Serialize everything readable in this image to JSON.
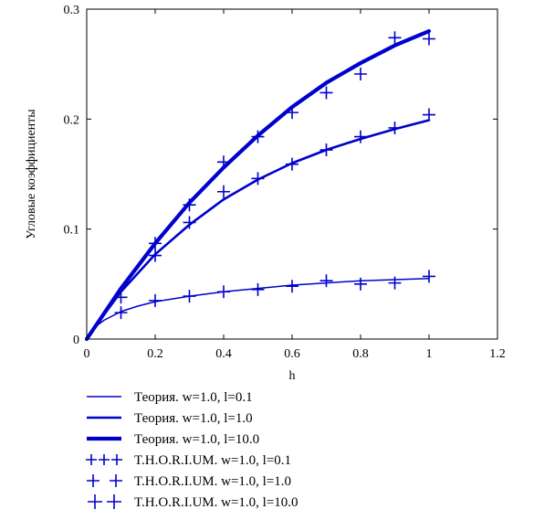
{
  "chart_data": {
    "type": "line",
    "title": "",
    "xlabel": "h",
    "ylabel": "Угловые коэффициенты",
    "xlim": [
      0,
      1.2
    ],
    "ylim": [
      0,
      0.3
    ],
    "x_ticks": [
      0,
      0.2,
      0.4,
      0.6,
      0.8,
      1,
      1.2
    ],
    "x_tick_labels": [
      "0",
      "0.2",
      "0.4",
      "0.6",
      "0.8",
      "1",
      "1.2"
    ],
    "y_ticks": [
      0,
      0.1,
      0.2,
      0.3
    ],
    "y_tick_labels": [
      "0",
      "0.1",
      "0.2",
      "0.3"
    ],
    "grid": false,
    "legend_position": "bottom",
    "series_color": "#0000cc",
    "series": [
      {
        "name": "Теория. w=1.0, l=0.1",
        "kind": "line",
        "style": "thin",
        "x": [
          0,
          0.02,
          0.05,
          0.1,
          0.15,
          0.2,
          0.3,
          0.4,
          0.5,
          0.6,
          0.7,
          0.8,
          0.9,
          1.0
        ],
        "y": [
          0,
          0.01,
          0.017,
          0.025,
          0.03,
          0.034,
          0.039,
          0.043,
          0.046,
          0.049,
          0.051,
          0.053,
          0.054,
          0.055
        ]
      },
      {
        "name": "Теория. w=1.0, l=1.0",
        "kind": "line",
        "style": "medium",
        "x": [
          0,
          0.05,
          0.1,
          0.2,
          0.3,
          0.4,
          0.5,
          0.6,
          0.7,
          0.8,
          0.9,
          1.0
        ],
        "y": [
          0,
          0.022,
          0.043,
          0.077,
          0.104,
          0.127,
          0.145,
          0.16,
          0.172,
          0.182,
          0.191,
          0.199
        ]
      },
      {
        "name": "Теория. w=1.0, l=10.0",
        "kind": "line",
        "style": "thick",
        "x": [
          0,
          0.05,
          0.1,
          0.2,
          0.3,
          0.4,
          0.5,
          0.6,
          0.7,
          0.8,
          0.9,
          1.0
        ],
        "y": [
          0,
          0.023,
          0.046,
          0.087,
          0.124,
          0.156,
          0.185,
          0.211,
          0.233,
          0.251,
          0.267,
          0.28
        ]
      },
      {
        "name": "T.H.O.R.I.UM. w=1.0, l=0.1",
        "kind": "markers",
        "x": [
          0.1,
          0.2,
          0.3,
          0.4,
          0.5,
          0.6,
          0.7,
          0.8,
          0.9,
          1.0
        ],
        "y": [
          0.024,
          0.035,
          0.039,
          0.043,
          0.045,
          0.048,
          0.053,
          0.05,
          0.051,
          0.057
        ]
      },
      {
        "name": "T.H.O.R.I.UM. w=1.0, l=1.0",
        "kind": "markers",
        "x": [
          0.1,
          0.2,
          0.3,
          0.4,
          0.5,
          0.6,
          0.7,
          0.8,
          0.9,
          1.0
        ],
        "y": [
          0.038,
          0.076,
          0.106,
          0.134,
          0.146,
          0.159,
          0.172,
          0.184,
          0.192,
          0.204
        ]
      },
      {
        "name": "T.H.O.R.I.UM. w=1.0, l=10.0",
        "kind": "markers",
        "x": [
          0.2,
          0.3,
          0.4,
          0.5,
          0.6,
          0.7,
          0.8,
          0.9,
          1.0
        ],
        "y": [
          0.087,
          0.122,
          0.161,
          0.184,
          0.206,
          0.224,
          0.241,
          0.274,
          0.273
        ]
      }
    ]
  }
}
